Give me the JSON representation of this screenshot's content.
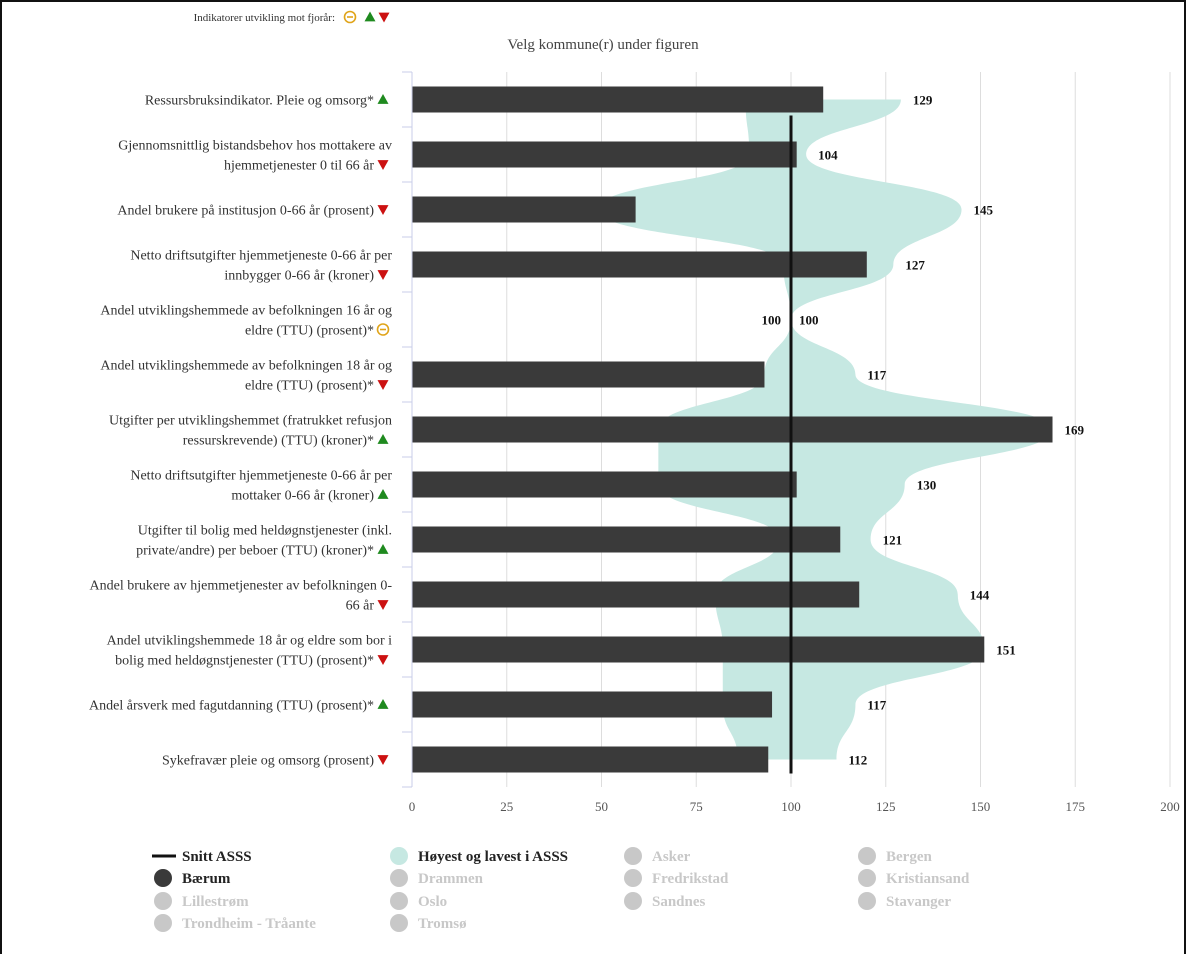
{
  "header": {
    "indicator_text": "Indikatorer utvikling mot fjorår:",
    "subtitle": "Velg kommune(r) under figuren"
  },
  "colors": {
    "bar": "#3a3a3a",
    "range_fill": "#c6e8e2",
    "avg_line": "#111111",
    "up": "#1f8a1f",
    "down": "#cc1111",
    "neutral": "#e0a419",
    "grid": "#dddddd",
    "inactive": "#c8c8c8"
  },
  "chart_data": {
    "type": "bar",
    "orientation": "horizontal",
    "xlim": [
      0,
      200
    ],
    "x_ticks": [
      0,
      25,
      50,
      75,
      100,
      125,
      150,
      175,
      200
    ],
    "grid": true,
    "average_value": 100,
    "categories": [
      {
        "label_lines": [
          "Ressursbruksindikator. Pleie og omsorg*"
        ],
        "trend": "up"
      },
      {
        "label_lines": [
          "Gjennomsnittlig bistandsbehov hos mottakere av",
          "hjemmetjenester 0 til 66 år"
        ],
        "trend": "down"
      },
      {
        "label_lines": [
          "Andel brukere på institusjon 0-66 år (prosent)"
        ],
        "trend": "down"
      },
      {
        "label_lines": [
          "Netto driftsutgifter hjemmetjeneste 0-66 år per",
          "innbygger 0-66 år (kroner)"
        ],
        "trend": "down"
      },
      {
        "label_lines": [
          "Andel utviklingshemmede av befolkningen 16 år og",
          "eldre (TTU) (prosent)*"
        ],
        "trend": "neutral"
      },
      {
        "label_lines": [
          "Andel utviklingshemmede av befolkningen 18 år og",
          "eldre (TTU) (prosent)*"
        ],
        "trend": "down"
      },
      {
        "label_lines": [
          "Utgifter per utviklingshemmet (fratrukket refusjon",
          "ressurskrevende) (TTU) (kroner)*"
        ],
        "trend": "up"
      },
      {
        "label_lines": [
          "Netto driftsutgifter hjemmetjeneste 0-66 år per",
          "mottaker 0-66 år (kroner)"
        ],
        "trend": "up"
      },
      {
        "label_lines": [
          "Utgifter til bolig med heldøgnstjenester (inkl.",
          "private/andre) per beboer (TTU) (kroner)*"
        ],
        "trend": "up"
      },
      {
        "label_lines": [
          "Andel brukere av hjemmetjenester av befolkningen 0-",
          "66 år"
        ],
        "trend": "down"
      },
      {
        "label_lines": [
          "Andel utviklingshemmede 18 år og eldre som bor i",
          "bolig med heldøgnstjenester (TTU) (prosent)*"
        ],
        "trend": "down"
      },
      {
        "label_lines": [
          "Andel årsverk med fagutdanning (TTU) (prosent)*"
        ],
        "trend": "up"
      },
      {
        "label_lines": [
          "Sykefravær pleie og omsorg (prosent)"
        ],
        "trend": "down"
      }
    ],
    "series": [
      {
        "name": "Bærum",
        "type": "bar",
        "values": [
          108.5,
          101.5,
          59,
          120,
          null,
          93,
          169,
          101.5,
          113,
          118,
          151,
          95,
          94
        ]
      },
      {
        "name": "Høyest og lavest i ASSS",
        "type": "area",
        "high": [
          129,
          104,
          145,
          127,
          100,
          117,
          169,
          130,
          121,
          144,
          151,
          117,
          112
        ],
        "low": [
          88,
          89,
          49,
          98,
          100,
          93,
          65,
          65,
          97,
          80,
          82,
          82,
          86
        ]
      },
      {
        "name": "Snitt ASSS",
        "type": "line",
        "value": 100
      }
    ],
    "data_labels": [
      {
        "index": 0,
        "texts": [
          "129"
        ]
      },
      {
        "index": 1,
        "texts": [
          "104"
        ]
      },
      {
        "index": 2,
        "texts": [
          "145"
        ]
      },
      {
        "index": 3,
        "texts": [
          "127"
        ]
      },
      {
        "index": 4,
        "texts": [
          "100",
          "100"
        ]
      },
      {
        "index": 5,
        "texts": [
          "117"
        ]
      },
      {
        "index": 6,
        "texts": [
          "169"
        ]
      },
      {
        "index": 7,
        "texts": [
          "130"
        ]
      },
      {
        "index": 8,
        "texts": [
          "121"
        ]
      },
      {
        "index": 9,
        "texts": [
          "144"
        ]
      },
      {
        "index": 10,
        "texts": [
          "151"
        ]
      },
      {
        "index": 11,
        "texts": [
          "117"
        ]
      },
      {
        "index": 12,
        "texts": [
          "112"
        ]
      }
    ]
  },
  "legend": [
    {
      "name": "Snitt ASSS",
      "symbol": "line",
      "active": true
    },
    {
      "name": "Høyest og lavest i ASSS",
      "symbol": "dot-teal",
      "active": true
    },
    {
      "name": "Asker",
      "symbol": "dot",
      "active": false
    },
    {
      "name": "Bergen",
      "symbol": "dot",
      "active": false
    },
    {
      "name": "Bærum",
      "symbol": "dot-dark",
      "active": true
    },
    {
      "name": "Drammen",
      "symbol": "dot",
      "active": false
    },
    {
      "name": "Fredrikstad",
      "symbol": "dot",
      "active": false
    },
    {
      "name": "Kristiansand",
      "symbol": "dot",
      "active": false
    },
    {
      "name": "Lillestrøm",
      "symbol": "dot",
      "active": false
    },
    {
      "name": "Oslo",
      "symbol": "dot",
      "active": false
    },
    {
      "name": "Sandnes",
      "symbol": "dot",
      "active": false
    },
    {
      "name": "Stavanger",
      "symbol": "dot",
      "active": false
    },
    {
      "name": "Trondheim - Tråante",
      "symbol": "dot",
      "active": false
    },
    {
      "name": "Tromsø",
      "symbol": "dot",
      "active": false
    }
  ]
}
